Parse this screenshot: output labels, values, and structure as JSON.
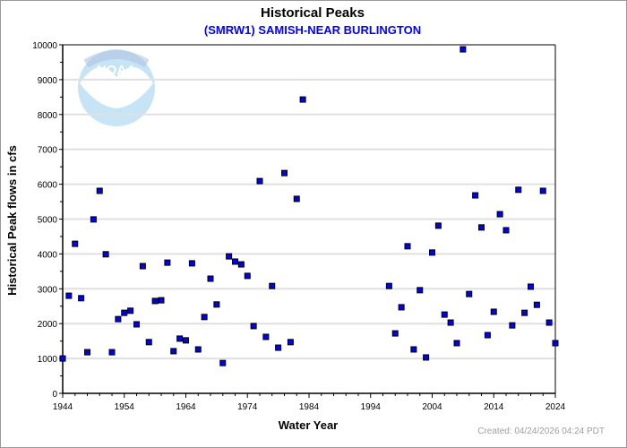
{
  "chart_data": {
    "type": "scatter",
    "title": "Historical Peaks",
    "subtitle": "(SMRW1) SAMISH-NEAR BURLINGTON",
    "xlabel": "Water Year",
    "ylabel": "Historical Peak flows in cfs",
    "xlim": [
      1944,
      2024
    ],
    "ylim": [
      0,
      10000
    ],
    "xticks": [
      1944,
      1954,
      1964,
      1974,
      1984,
      1994,
      2004,
      2014,
      2024
    ],
    "yticks": [
      0,
      1000,
      2000,
      3000,
      4000,
      5000,
      6000,
      7000,
      8000,
      9000,
      10000
    ],
    "grid": "horizontal",
    "colors": {
      "marker": "#0000ee",
      "marker_edge": "#000000",
      "subtitle": "#0000ff",
      "grid": "#e0e0e0",
      "footer": "#a0a0a0"
    },
    "points": [
      [
        1944,
        1000
      ],
      [
        1945,
        2800
      ],
      [
        1946,
        4290
      ],
      [
        1947,
        2730
      ],
      [
        1948,
        1180
      ],
      [
        1949,
        4990
      ],
      [
        1950,
        5810
      ],
      [
        1951,
        3990
      ],
      [
        1952,
        1180
      ],
      [
        1953,
        2130
      ],
      [
        1954,
        2310
      ],
      [
        1955,
        2370
      ],
      [
        1956,
        1980
      ],
      [
        1957,
        3650
      ],
      [
        1958,
        1470
      ],
      [
        1959,
        2650
      ],
      [
        1960,
        2670
      ],
      [
        1961,
        3750
      ],
      [
        1962,
        1210
      ],
      [
        1963,
        1570
      ],
      [
        1964,
        1520
      ],
      [
        1965,
        3730
      ],
      [
        1966,
        1260
      ],
      [
        1967,
        2190
      ],
      [
        1968,
        3290
      ],
      [
        1969,
        2550
      ],
      [
        1970,
        870
      ],
      [
        1971,
        3930
      ],
      [
        1972,
        3780
      ],
      [
        1973,
        3700
      ],
      [
        1974,
        3370
      ],
      [
        1975,
        1930
      ],
      [
        1976,
        6090
      ],
      [
        1977,
        1620
      ],
      [
        1978,
        3080
      ],
      [
        1979,
        1310
      ],
      [
        1980,
        6320
      ],
      [
        1981,
        1470
      ],
      [
        1982,
        5580
      ],
      [
        1983,
        8430
      ],
      [
        1997,
        3080
      ],
      [
        1998,
        1720
      ],
      [
        1999,
        2470
      ],
      [
        2000,
        4220
      ],
      [
        2001,
        1260
      ],
      [
        2002,
        2960
      ],
      [
        2003,
        1030
      ],
      [
        2004,
        4040
      ],
      [
        2005,
        4810
      ],
      [
        2006,
        2260
      ],
      [
        2007,
        2030
      ],
      [
        2008,
        1440
      ],
      [
        2009,
        9870
      ],
      [
        2010,
        2850
      ],
      [
        2011,
        5680
      ],
      [
        2012,
        4760
      ],
      [
        2013,
        1670
      ],
      [
        2014,
        2340
      ],
      [
        2015,
        5140
      ],
      [
        2016,
        4680
      ],
      [
        2017,
        1950
      ],
      [
        2018,
        5840
      ],
      [
        2019,
        2310
      ],
      [
        2020,
        3060
      ],
      [
        2021,
        2540
      ],
      [
        2022,
        5810
      ],
      [
        2023,
        2030
      ],
      [
        2024,
        1440
      ]
    ]
  },
  "logo": {
    "text": "NOAA"
  },
  "footer": "Created: 04/24/2026 04:24 PDT"
}
